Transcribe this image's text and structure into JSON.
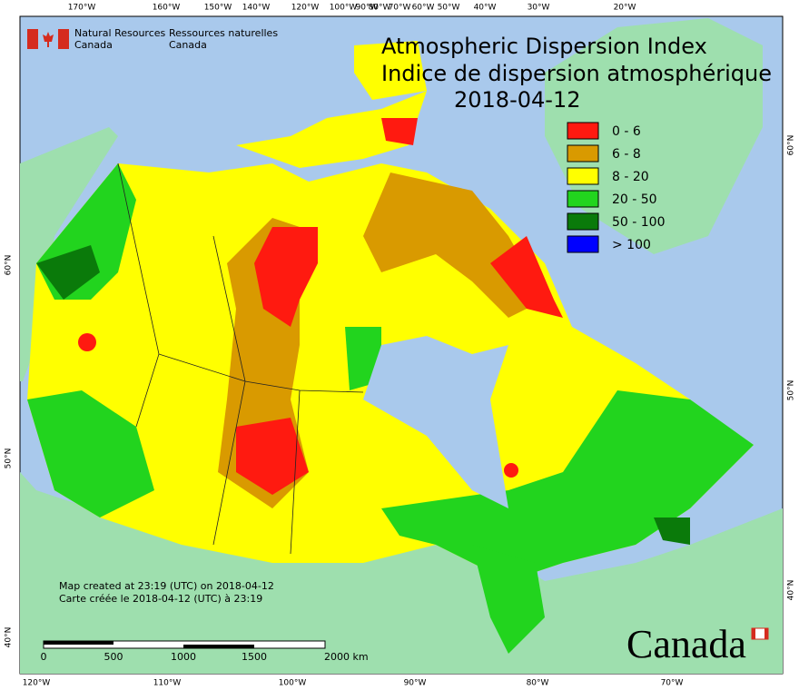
{
  "header": {
    "nrcan_en": [
      "Natural Resources",
      "Canada"
    ],
    "nrcan_fr": [
      "Ressources naturelles",
      "Canada"
    ],
    "title": [
      "Atmospheric Dispersion Index",
      "Indice de dispersion atmosphérique",
      "2018-04-12"
    ]
  },
  "legend": {
    "items": [
      {
        "label": "0 - 6",
        "color": "#ff1a10"
      },
      {
        "label": "6 - 8",
        "color": "#d99a00"
      },
      {
        "label": "8 - 20",
        "color": "#ffff00"
      },
      {
        "label": "20 - 50",
        "color": "#22d41e"
      },
      {
        "label": "50 - 100",
        "color": "#0a7a0a"
      },
      {
        "label": "> 100",
        "color": "#0000ff"
      }
    ]
  },
  "graticule": {
    "top": [
      "170°W",
      "160°W",
      "150°W",
      "140°W",
      "120°W",
      "100°W",
      "90°W",
      "80°W",
      "70°W",
      "60°W",
      "50°W",
      "40°W",
      "30°W",
      "20°W"
    ],
    "bottom": [
      "120°W",
      "110°W",
      "100°W",
      "90°W",
      "80°W",
      "70°W"
    ],
    "left": [
      "60°N",
      "50°N",
      "40°N"
    ],
    "right": [
      "60°N",
      "50°N",
      "40°N"
    ]
  },
  "footer": {
    "created": [
      "Map created at 23:19 (UTC) on 2018-04-12",
      "Carte créée le 2018-04-12 (UTC) à 23:19"
    ],
    "scale": [
      "0",
      "500",
      "1000",
      "1500",
      "2000  km"
    ],
    "wordmark": "Canada"
  }
}
